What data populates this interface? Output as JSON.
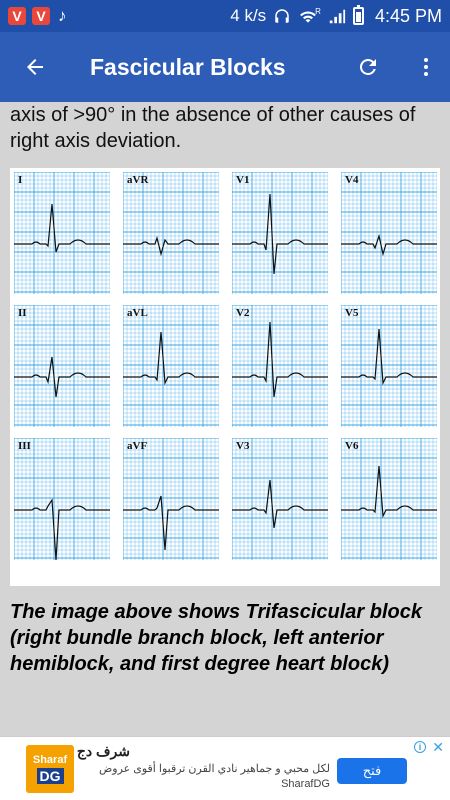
{
  "status_bar": {
    "app_icon_1": "V",
    "app_icon_2": "V",
    "music_icon": "music-note-icon",
    "net_speed": "4 k/s",
    "roaming_marker": "R",
    "time": "4:45 PM"
  },
  "app_bar": {
    "title": "Fascicular Blocks",
    "back_icon": "arrow-back-icon",
    "refresh_icon": "refresh-icon",
    "menu_icon": "more-vert-icon"
  },
  "content": {
    "lead_text": "axis of >90° in the absence of other causes of right axis deviation.",
    "ecg_leads": [
      "I",
      "aVR",
      "V1",
      "V4",
      "II",
      "aVL",
      "V2",
      "V5",
      "III",
      "aVF",
      "V3",
      "V6"
    ],
    "caption": "The image above shows Trifascicular block (right bundle branch block, left anterior hemiblock, and first degree heart block)"
  },
  "ad": {
    "logo_line1": "Sharaf",
    "logo_line2": "DG",
    "title": "شرف دج",
    "description": "لكل محبي و جماهير نادي القرن ترقبوا أقوى عروض SharafDG",
    "cta": "فتح",
    "info_icon": "info-icon",
    "close_icon": "close-icon"
  },
  "colors": {
    "status_bar": "#1f4fa8",
    "app_bar": "#2e5db8",
    "ecg_grid": "#39a4e6",
    "ad_button": "#1a73e8"
  }
}
